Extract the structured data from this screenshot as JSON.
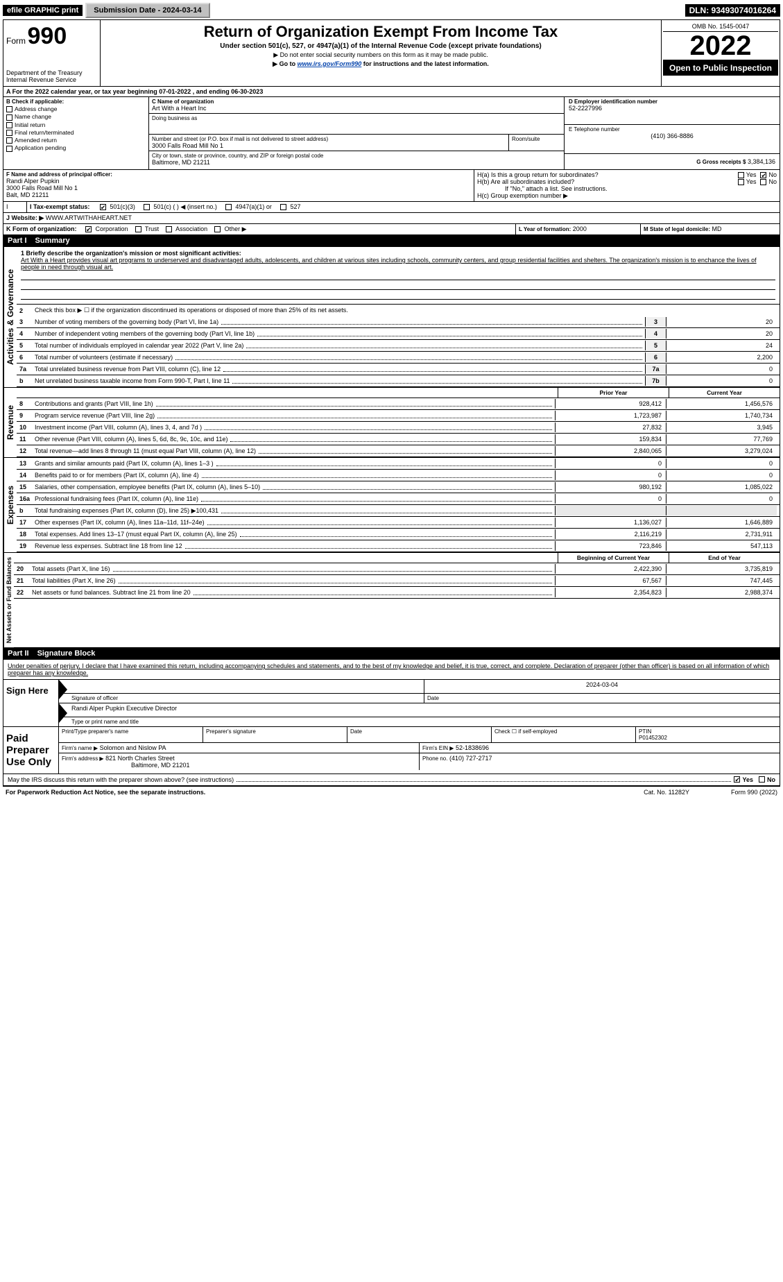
{
  "topbar": {
    "efile": "efile GRAPHIC print",
    "submission": "Submission Date - 2024-03-14",
    "dln": "DLN: 93493074016264"
  },
  "header": {
    "form_prefix": "Form",
    "form_number": "990",
    "title": "Return of Organization Exempt From Income Tax",
    "subtitle": "Under section 501(c), 527, or 4947(a)(1) of the Internal Revenue Code (except private foundations)",
    "note1": "▶ Do not enter social security numbers on this form as it may be made public.",
    "note2_pre": "▶ Go to ",
    "note2_link": "www.irs.gov/Form990",
    "note2_post": " for instructions and the latest information.",
    "dept": "Department of the Treasury",
    "irs": "Internal Revenue Service",
    "omb": "OMB No. 1545-0047",
    "year": "2022",
    "inspection": "Open to Public Inspection"
  },
  "period": {
    "line": "A For the 2022 calendar year, or tax year beginning 07-01-2022    , and ending 06-30-2023"
  },
  "section_b": {
    "header": "B Check if applicable:",
    "items": [
      "Address change",
      "Name change",
      "Initial return",
      "Final return/terminated",
      "Amended return",
      "Application pending"
    ]
  },
  "section_c": {
    "label_c": "C Name of organization",
    "org": "Art With a Heart Inc",
    "dba_label": "Doing business as",
    "addr_label": "Number and street (or P.O. box if mail is not delivered to street address)",
    "room": "Room/suite",
    "addr": "3000 Falls Road Mill No 1",
    "city_label": "City or town, state or province, country, and ZIP or foreign postal code",
    "city": "Baltimore, MD  21211"
  },
  "section_d": {
    "label": "D Employer identification number",
    "val": "52-2227996"
  },
  "section_e": {
    "label": "E Telephone number",
    "val": "(410) 366-8886"
  },
  "section_g": {
    "label": "G Gross receipts $",
    "val": "3,384,136"
  },
  "section_f": {
    "label": "F  Name and address of principal officer:",
    "name": "Randi Alper Pupkin",
    "addr1": "3000 Falls Road Mill No 1",
    "addr2": "Balt, MD  21211"
  },
  "section_h": {
    "ha": "H(a)  Is this a group return for subordinates?",
    "hb": "H(b)  Are all subordinates included?",
    "hb_note": "If \"No,\" attach a list. See instructions.",
    "hc": "H(c)  Group exemption number ▶",
    "yes": "Yes",
    "no": "No"
  },
  "section_i": {
    "label": "I  Tax-exempt status:",
    "opts": [
      "501(c)(3)",
      "501(c) (   ) ◀ (insert no.)",
      "4947(a)(1) or",
      "527"
    ]
  },
  "section_j": {
    "label": "J  Website: ▶",
    "val": "WWW.ARTWITHAHEART.NET"
  },
  "section_k": {
    "label": "K Form of organization:",
    "opts": [
      "Corporation",
      "Trust",
      "Association",
      "Other ▶"
    ]
  },
  "section_l": {
    "label": "L Year of formation:",
    "val": "2000"
  },
  "section_m": {
    "label": "M State of legal domicile:",
    "val": "MD"
  },
  "part1": {
    "num": "Part I",
    "title": "Summary"
  },
  "summary": {
    "side_gov": "Activities & Governance",
    "side_rev": "Revenue",
    "side_exp": "Expenses",
    "side_net": "Net Assets or Fund Balances",
    "l1_label": "1  Briefly describe the organization's mission or most significant activities:",
    "l1_text": "Art With a Heart provides visual art programs to underserved and disadvantaged adults, adolescents, and children at various sites including schools, community centers, and group residential facilities and shelters. The organization's mission is to enchance the lives of people in need through visual art.",
    "l2": "Check this box ▶ ☐ if the organization discontinued its operations or disposed of more than 25% of its net assets.",
    "lines_gov": [
      {
        "n": "3",
        "t": "Number of voting members of the governing body (Part VI, line 1a)",
        "k": "3",
        "v": "20"
      },
      {
        "n": "4",
        "t": "Number of independent voting members of the governing body (Part VI, line 1b)",
        "k": "4",
        "v": "20"
      },
      {
        "n": "5",
        "t": "Total number of individuals employed in calendar year 2022 (Part V, line 2a)",
        "k": "5",
        "v": "24"
      },
      {
        "n": "6",
        "t": "Total number of volunteers (estimate if necessary)",
        "k": "6",
        "v": "2,200"
      },
      {
        "n": "7a",
        "t": "Total unrelated business revenue from Part VIII, column (C), line 12",
        "k": "7a",
        "v": "0"
      },
      {
        "n": "b",
        "t": "Net unrelated business taxable income from Form 990-T, Part I, line 11",
        "k": "7b",
        "v": "0"
      }
    ],
    "col_prior": "Prior Year",
    "col_curr": "Current Year",
    "lines_rev": [
      {
        "n": "8",
        "t": "Contributions and grants (Part VIII, line 1h)",
        "p": "928,412",
        "c": "1,456,576"
      },
      {
        "n": "9",
        "t": "Program service revenue (Part VIII, line 2g)",
        "p": "1,723,987",
        "c": "1,740,734"
      },
      {
        "n": "10",
        "t": "Investment income (Part VIII, column (A), lines 3, 4, and 7d )",
        "p": "27,832",
        "c": "3,945"
      },
      {
        "n": "11",
        "t": "Other revenue (Part VIII, column (A), lines 5, 6d, 8c, 9c, 10c, and 11e)",
        "p": "159,834",
        "c": "77,769"
      },
      {
        "n": "12",
        "t": "Total revenue—add lines 8 through 11 (must equal Part VIII, column (A), line 12)",
        "p": "2,840,065",
        "c": "3,279,024"
      }
    ],
    "lines_exp": [
      {
        "n": "13",
        "t": "Grants and similar amounts paid (Part IX, column (A), lines 1–3 )",
        "p": "0",
        "c": "0"
      },
      {
        "n": "14",
        "t": "Benefits paid to or for members (Part IX, column (A), line 4)",
        "p": "0",
        "c": "0"
      },
      {
        "n": "15",
        "t": "Salaries, other compensation, employee benefits (Part IX, column (A), lines 5–10)",
        "p": "980,192",
        "c": "1,085,022"
      },
      {
        "n": "16a",
        "t": "Professional fundraising fees (Part IX, column (A), line 11e)",
        "p": "0",
        "c": "0"
      },
      {
        "n": "b",
        "t": "Total fundraising expenses (Part IX, column (D), line 25) ▶100,431",
        "p": "",
        "c": "",
        "shade": true
      },
      {
        "n": "17",
        "t": "Other expenses (Part IX, column (A), lines 11a–11d, 11f–24e)",
        "p": "1,136,027",
        "c": "1,646,889"
      },
      {
        "n": "18",
        "t": "Total expenses. Add lines 13–17 (must equal Part IX, column (A), line 25)",
        "p": "2,116,219",
        "c": "2,731,911"
      },
      {
        "n": "19",
        "t": "Revenue less expenses. Subtract line 18 from line 12",
        "p": "723,846",
        "c": "547,113"
      }
    ],
    "col_beg": "Beginning of Current Year",
    "col_end": "End of Year",
    "lines_net": [
      {
        "n": "20",
        "t": "Total assets (Part X, line 16)",
        "p": "2,422,390",
        "c": "3,735,819"
      },
      {
        "n": "21",
        "t": "Total liabilities (Part X, line 26)",
        "p": "67,567",
        "c": "747,445"
      },
      {
        "n": "22",
        "t": "Net assets or fund balances. Subtract line 21 from line 20",
        "p": "2,354,823",
        "c": "2,988,374"
      }
    ]
  },
  "part2": {
    "num": "Part II",
    "title": "Signature Block"
  },
  "penalties": "Under penalties of perjury, I declare that I have examined this return, including accompanying schedules and statements, and to the best of my knowledge and belief, it is true, correct, and complete. Declaration of preparer (other than officer) is based on all information of which preparer has any knowledge.",
  "sign": {
    "here": "Sign Here",
    "sig_officer": "Signature of officer",
    "date": "Date",
    "date_val": "2024-03-04",
    "name": "Randi Alper Pupkin  Executive Director",
    "name_label": "Type or print name and title"
  },
  "paid": {
    "label": "Paid Preparer Use Only",
    "h1": "Print/Type preparer's name",
    "h2": "Preparer's signature",
    "h3": "Date",
    "h4_pre": "Check ☐ if self-employed",
    "ptin_label": "PTIN",
    "ptin": "P01452302",
    "firm_name_label": "Firm's name    ▶",
    "firm_name": "Solomon and Nislow PA",
    "firm_ein_label": "Firm's EIN ▶",
    "firm_ein": "52-1838696",
    "firm_addr_label": "Firm's address ▶",
    "firm_addr1": "821 North Charles Street",
    "firm_addr2": "Baltimore, MD  21201",
    "phone_label": "Phone no.",
    "phone": "(410) 727-2717"
  },
  "discuss": {
    "q": "May the IRS discuss this return with the preparer shown above? (see instructions)",
    "yes": "Yes",
    "no": "No"
  },
  "footer": {
    "left": "For Paperwork Reduction Act Notice, see the separate instructions.",
    "mid": "Cat. No. 11282Y",
    "right": "Form 990 (2022)"
  }
}
